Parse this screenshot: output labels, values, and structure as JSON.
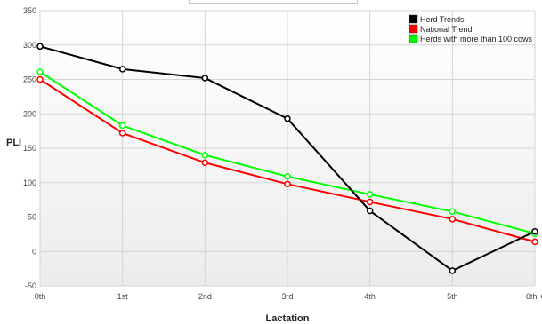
{
  "chart_data": {
    "type": "line",
    "categories": [
      "0th",
      "1st",
      "2nd",
      "3rd",
      "4th",
      "5th",
      "6th +"
    ],
    "xlabel": "Lactation",
    "ylabel": "PLI",
    "ylim": [
      -50,
      350
    ],
    "yticks": [
      -50,
      0,
      50,
      100,
      150,
      200,
      250,
      300,
      350
    ],
    "grid": true,
    "legend_position": "top-right",
    "series": [
      {
        "name": "Herd Trends",
        "color": "#000000",
        "values": [
          298,
          265,
          252,
          193,
          59,
          -28,
          29
        ]
      },
      {
        "name": "National Trend",
        "color": "#ff0000",
        "values": [
          250,
          172,
          129,
          98,
          72,
          47,
          14
        ]
      },
      {
        "name": "Herds with more than 100 cows",
        "color": "#00ff00",
        "values": [
          261,
          183,
          140,
          109,
          83,
          58,
          26
        ]
      }
    ]
  }
}
